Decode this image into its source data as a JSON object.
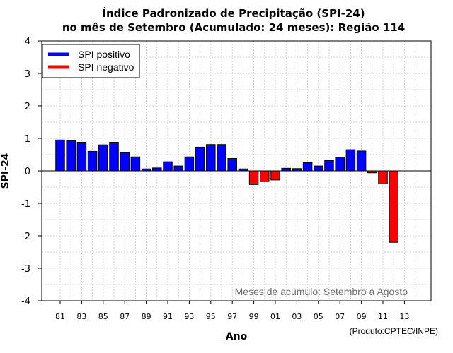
{
  "chart_data": {
    "type": "bar",
    "title_line1": "Índice Padronizado de Precipitação (SPI-24)",
    "title_line2": "no mês de Setembro (Acumulado: 24 meses): Região 114",
    "xlabel": "Ano",
    "ylabel": "SPI-24",
    "ylim": [
      -4,
      4
    ],
    "yticks": [
      "-4",
      "-3",
      "-2",
      "-1",
      "0",
      "1",
      "2",
      "3",
      "4"
    ],
    "xticks": [
      "81",
      "83",
      "85",
      "87",
      "89",
      "91",
      "93",
      "95",
      "97",
      "99",
      "01",
      "03",
      "05",
      "07",
      "09",
      "11",
      "13"
    ],
    "years": [
      "81",
      "82",
      "83",
      "84",
      "85",
      "86",
      "87",
      "88",
      "89",
      "90",
      "91",
      "92",
      "93",
      "94",
      "95",
      "96",
      "97",
      "98",
      "99",
      "00",
      "01",
      "02",
      "03",
      "04",
      "05",
      "06",
      "07",
      "08",
      "09",
      "10",
      "11",
      "12"
    ],
    "values": [
      0.95,
      0.93,
      0.88,
      0.6,
      0.8,
      0.88,
      0.56,
      0.43,
      0.06,
      0.09,
      0.28,
      0.15,
      0.43,
      0.73,
      0.81,
      0.81,
      0.38,
      0.06,
      -0.42,
      -0.33,
      -0.28,
      0.08,
      0.07,
      0.25,
      0.15,
      0.32,
      0.4,
      0.65,
      0.61,
      -0.06,
      -0.4,
      -2.2
    ],
    "grid": true,
    "legend_placement": "top-left",
    "legend": [
      {
        "label": "SPI positivo",
        "color": "#0000ff"
      },
      {
        "label": "SPI negativo",
        "color": "#ff0000"
      }
    ],
    "annotation": "Meses de acúmulo: Setembro a Agosto",
    "credit": "(Produto:CPTEC/INPE)"
  }
}
